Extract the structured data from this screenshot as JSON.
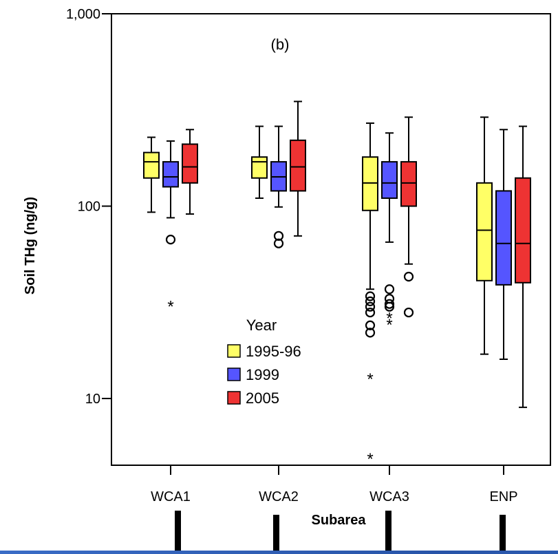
{
  "chart_data": {
    "type": "boxplot",
    "panel_label": "(b)",
    "xlabel": "Subarea",
    "ylabel": "Soil THg (ng/g)",
    "yscale": "log",
    "ylim": [
      4.5,
      1000
    ],
    "yticks": [
      {
        "value": 10,
        "label": "10"
      },
      {
        "value": 100,
        "label": "100"
      },
      {
        "value": 1000,
        "label": "1,000"
      }
    ],
    "categories": [
      "WCA1",
      "WCA2",
      "WCA3",
      "ENP"
    ],
    "legend": {
      "title": "Year",
      "entries": [
        {
          "label": "1995-96",
          "color": "#ffff66"
        },
        {
          "label": "1999",
          "color": "#5555ff"
        },
        {
          "label": "2005",
          "color": "#ee3333"
        }
      ]
    },
    "series": [
      {
        "name": "1995-96",
        "color": "#ffff66",
        "boxes": [
          {
            "whisker_low": 93,
            "q1": 140,
            "median": 170,
            "q3": 190,
            "whisker_high": 228,
            "outliers": [],
            "extremes": []
          },
          {
            "whisker_low": 110,
            "q1": 140,
            "median": 170,
            "q3": 180,
            "whisker_high": 260,
            "outliers": [],
            "extremes": []
          },
          {
            "whisker_low": 37,
            "q1": 95,
            "median": 132,
            "q3": 180,
            "whisker_high": 270,
            "outliers": [
              34,
              32,
              30,
              28,
              24,
              22
            ],
            "extremes": [
              13,
              5
            ]
          },
          {
            "whisker_low": 17,
            "q1": 41,
            "median": 75,
            "q3": 132,
            "whisker_high": 290,
            "outliers": [],
            "extremes": []
          }
        ]
      },
      {
        "name": "1999",
        "color": "#5555ff",
        "boxes": [
          {
            "whisker_low": 87,
            "q1": 126,
            "median": 142,
            "q3": 170,
            "whisker_high": 218,
            "outliers": [
              67
            ],
            "extremes": [
              31
            ]
          },
          {
            "whisker_low": 99,
            "q1": 120,
            "median": 142,
            "q3": 170,
            "whisker_high": 260,
            "outliers": [
              70,
              64
            ],
            "extremes": []
          },
          {
            "whisker_low": 65,
            "q1": 110,
            "median": 132,
            "q3": 170,
            "whisker_high": 240,
            "outliers": [
              37,
              33,
              31,
              30
            ],
            "extremes": [
              27,
              25
            ]
          },
          {
            "whisker_low": 16,
            "q1": 39,
            "median": 64,
            "q3": 120,
            "whisker_high": 250,
            "outliers": [],
            "extremes": []
          }
        ]
      },
      {
        "name": "2005",
        "color": "#ee3333",
        "boxes": [
          {
            "whisker_low": 91,
            "q1": 132,
            "median": 160,
            "q3": 210,
            "whisker_high": 250,
            "outliers": [],
            "extremes": []
          },
          {
            "whisker_low": 70,
            "q1": 120,
            "median": 160,
            "q3": 220,
            "whisker_high": 350,
            "outliers": [],
            "extremes": []
          },
          {
            "whisker_low": 50,
            "q1": 100,
            "median": 132,
            "q3": 170,
            "whisker_high": 290,
            "outliers": [
              43,
              28
            ],
            "extremes": []
          },
          {
            "whisker_low": 9,
            "q1": 40,
            "median": 64,
            "q3": 140,
            "whisker_high": 260,
            "outliers": [],
            "extremes": []
          }
        ]
      }
    ]
  }
}
